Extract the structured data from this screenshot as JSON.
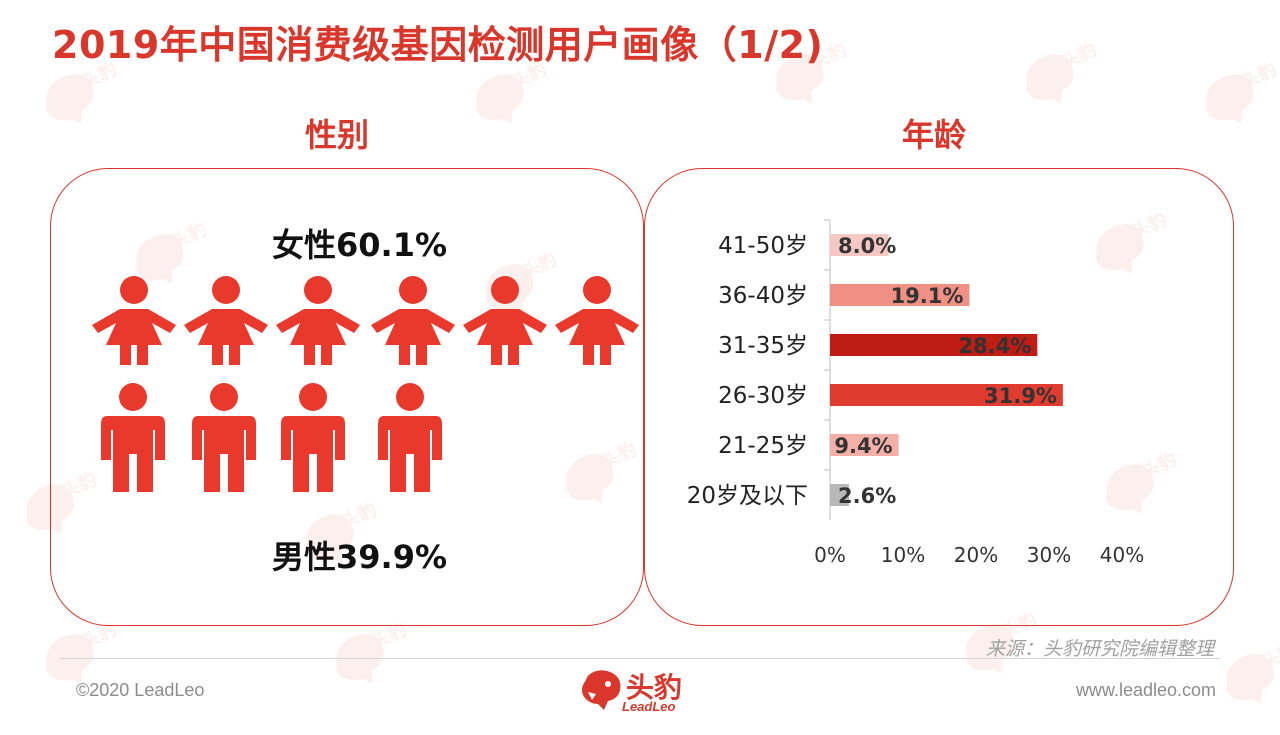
{
  "page": {
    "title": "2019年中国消费级基因检测用户画像（1/2)",
    "source_note": "来源：头豹研究院编辑整理",
    "copyright": "©2020 LeadLeo",
    "website": "www.leadleo.com",
    "logo": {
      "name": "头豹",
      "sub": "LeadLeo"
    }
  },
  "gender": {
    "section_title": "性别",
    "female_label": "女性60.1%",
    "male_label": "男性39.9%",
    "female_icon_count": 6,
    "male_icon_count": 4,
    "female_color": "#e8392c",
    "male_color": "#e8392c"
  },
  "age": {
    "section_title": "年龄"
  },
  "chart_data": {
    "type": "bar",
    "orientation": "horizontal",
    "categories": [
      "41-50岁",
      "36-40岁",
      "31-35岁",
      "26-30岁",
      "21-25岁",
      "20岁及以下"
    ],
    "values": [
      8.0,
      19.1,
      28.4,
      31.9,
      9.4,
      2.6
    ],
    "labels": [
      "8.0%",
      "19.1%",
      "28.4%",
      "31.9%",
      "9.4%",
      "2.6%"
    ],
    "colors": [
      "#f6c8c4",
      "#f08f83",
      "#bf1c14",
      "#e03b2f",
      "#f4b0a8",
      "#b8b8b8"
    ],
    "xlim": [
      0,
      40
    ],
    "xticks": [
      "0%",
      "10%",
      "20%",
      "30%",
      "40%"
    ],
    "grid": false
  }
}
